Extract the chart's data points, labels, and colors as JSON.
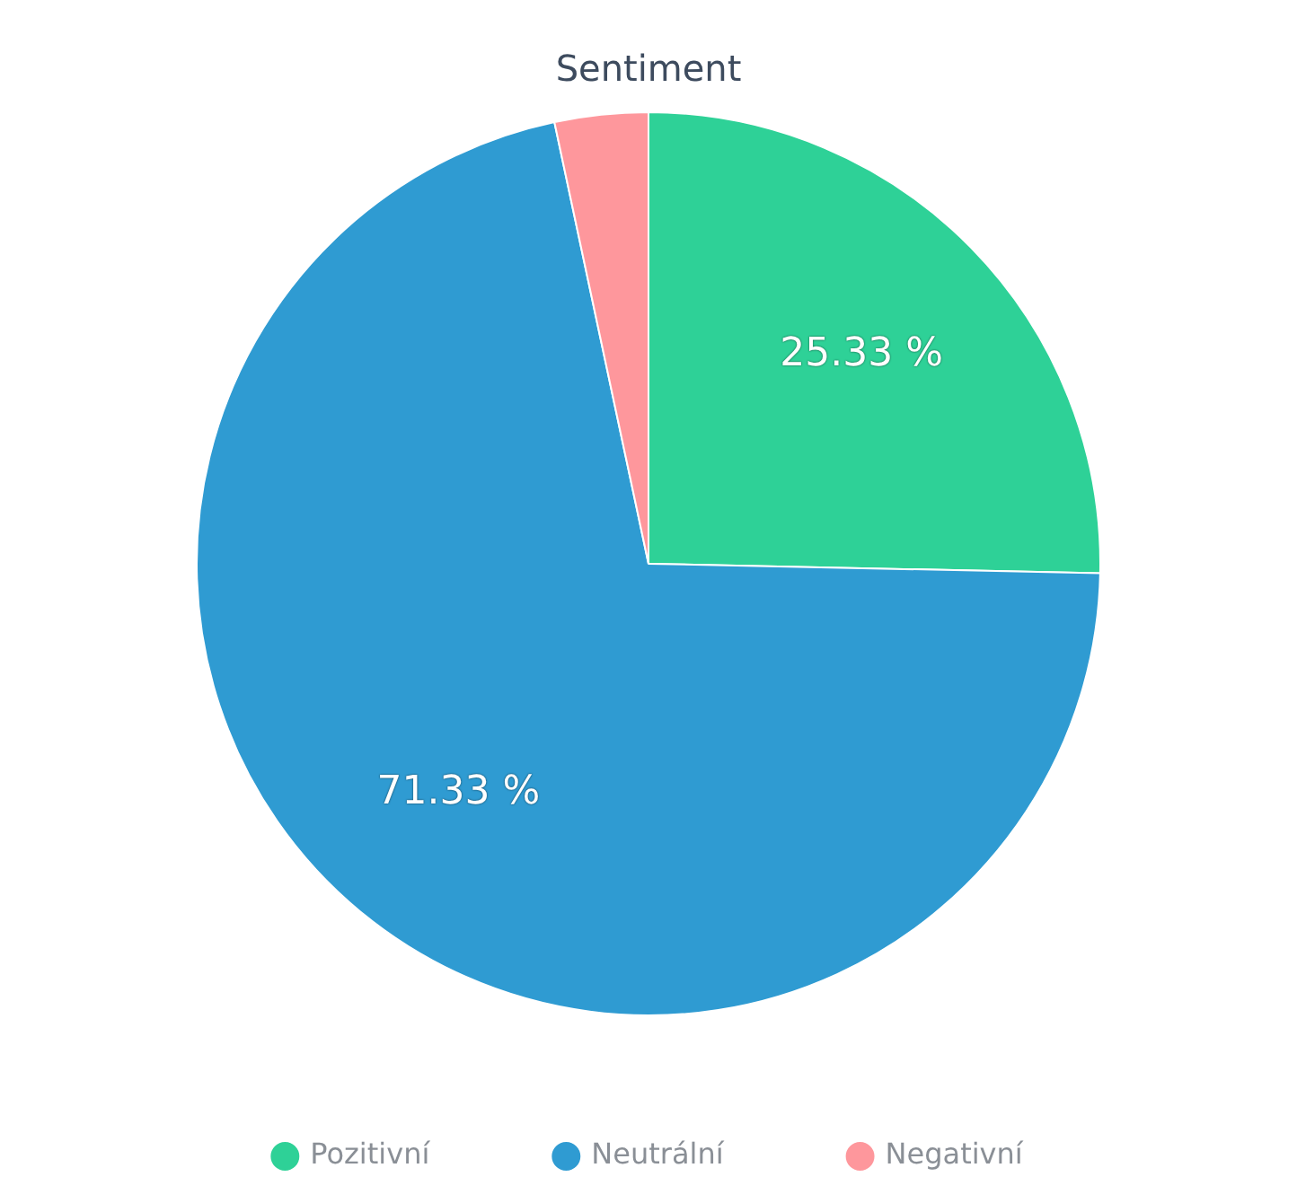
{
  "chart_data": {
    "type": "pie",
    "title": "Sentiment",
    "categories": [
      "Pozitivní",
      "Neutrální",
      "Negativní"
    ],
    "values": [
      25.33,
      71.33,
      3.34
    ],
    "colors": [
      "#2ed197",
      "#2f9bd2",
      "#fe979c"
    ],
    "value_labels": [
      "25.33 %",
      "71.33 %",
      null
    ],
    "legend": "bottom"
  }
}
